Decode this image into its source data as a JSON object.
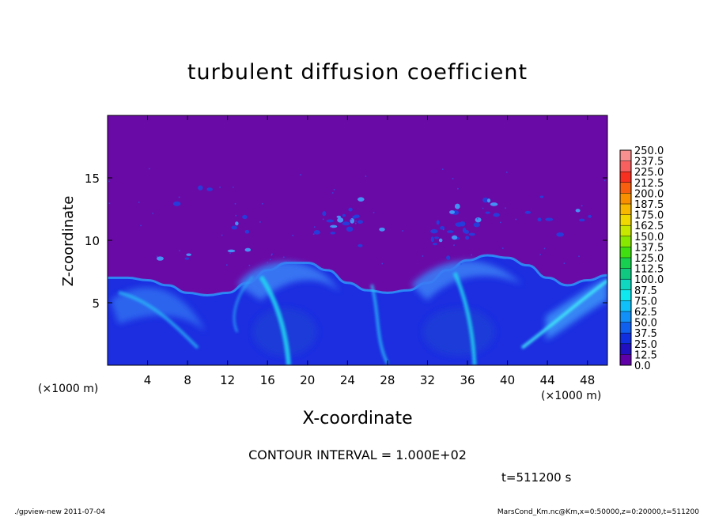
{
  "chart_data": {
    "type": "heatmap",
    "title": "turbulent diffusion coefficient",
    "xlabel": "X-coordinate",
    "ylabel": "Z-coordinate",
    "x_unit": "(×1000 m)",
    "x_unit_right": "(×1000 m)",
    "xlim": [
      0,
      50
    ],
    "ylim": [
      0,
      20
    ],
    "x_ticks": [
      4,
      8,
      12,
      16,
      20,
      24,
      28,
      32,
      36,
      40,
      44,
      48
    ],
    "y_ticks": [
      5,
      10,
      15
    ],
    "colorbar": {
      "levels": [
        "250.0",
        "237.5",
        "225.0",
        "212.5",
        "200.0",
        "187.5",
        "175.0",
        "162.5",
        "150.0",
        "137.5",
        "125.0",
        "112.5",
        "100.0",
        "87.5",
        "75.0",
        "62.5",
        "50.0",
        "37.5",
        "25.0",
        "12.5",
        "0.0"
      ],
      "colors": [
        "#f89090",
        "#f86060",
        "#f83020",
        "#f86010",
        "#f89000",
        "#f8b800",
        "#f0d800",
        "#c8e800",
        "#88e800",
        "#40e010",
        "#18d050",
        "#10c880",
        "#10d8c0",
        "#10e8f0",
        "#10c0f8",
        "#1090f8",
        "#1060f0",
        "#1030e0",
        "#2010c0",
        "#6000a8"
      ]
    },
    "background_value_color": "#6a0aa6",
    "boundary_layer_top_km": [
      7,
      7,
      6.8,
      6.4,
      5.8,
      5.6,
      5.8,
      6.6,
      7.6,
      8.2,
      8.2,
      7.6,
      6.6,
      6.0,
      5.8,
      6.0,
      6.6,
      7.6,
      8.4,
      8.8,
      8.6,
      8.0,
      7.0,
      6.4,
      6.8,
      7.2
    ],
    "contour_interval": "CONTOUR INTERVAL = 1.000E+02",
    "time": "t=511200 s"
  },
  "footer": {
    "left": "./gpview-new   2011-07-04",
    "right": "MarsCond_Km.nc@Km,x=0:50000,z=0:20000,t=511200"
  }
}
